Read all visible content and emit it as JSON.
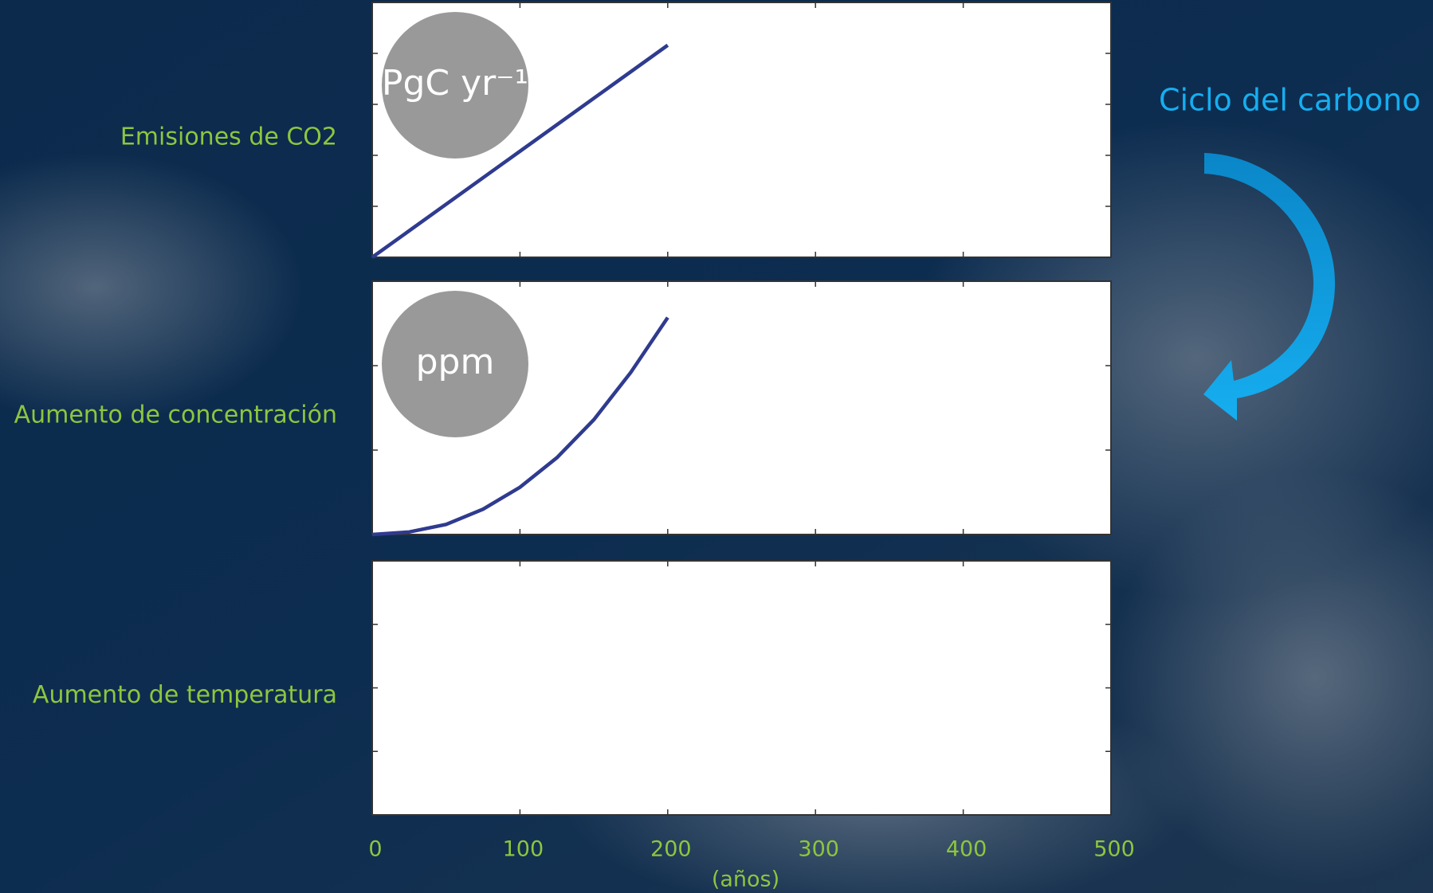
{
  "chart_data": [
    {
      "type": "line",
      "ylabel": "Emisiones de CO2",
      "unit": "PgC yr⁻¹",
      "x": [
        0,
        50,
        100,
        150,
        200
      ],
      "values": [
        0,
        1.04,
        2.08,
        3.12,
        4.16
      ],
      "color": "#2f3b8f",
      "xlim": [
        0,
        500
      ],
      "xticks": [
        0,
        100,
        200,
        300,
        400,
        500
      ],
      "ylim": [
        0,
        5
      ],
      "yticks": [
        1,
        2,
        3,
        4
      ]
    },
    {
      "type": "line",
      "ylabel": "Aumento de concentración",
      "unit": "ppm",
      "x": [
        0,
        25,
        50,
        75,
        100,
        125,
        150,
        175,
        200
      ],
      "values": [
        0,
        0.03,
        0.12,
        0.3,
        0.56,
        0.91,
        1.36,
        1.92,
        2.57
      ],
      "color": "#2f3b8f",
      "xlim": [
        0,
        500
      ],
      "xticks": [
        0,
        100,
        200,
        300,
        400,
        500
      ],
      "ylim": [
        0,
        3
      ],
      "yticks": [
        1,
        2
      ]
    },
    {
      "type": "line",
      "ylabel": "Aumento de temperatura",
      "xlabel": "(años)",
      "x": [],
      "values": [],
      "color": "#2f3b8f",
      "xlim": [
        0,
        500
      ],
      "xticks": [
        0,
        100,
        200,
        300,
        400,
        500
      ],
      "ylim": [
        0,
        4
      ],
      "yticks": [
        1,
        2,
        3
      ]
    }
  ],
  "annotation": "Ciclo del carbono"
}
